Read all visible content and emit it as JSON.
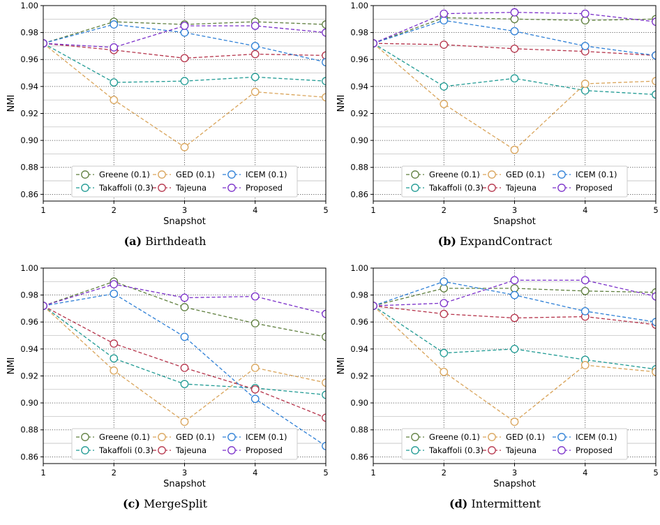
{
  "y_tick_labels": [
    "0.86",
    "0.88",
    "0.90",
    "0.92",
    "0.94",
    "0.96",
    "0.98",
    "1.00"
  ],
  "x_tick_labels": [
    "1",
    "2",
    "3",
    "4",
    "5"
  ],
  "legend_markers": "circle",
  "chart_data": [
    {
      "type": "line",
      "panel_label": "(a)",
      "caption": "Birthdeath",
      "xlabel": "Snapshot",
      "ylabel": "NMI",
      "x": [
        1,
        2,
        3,
        4,
        5
      ],
      "xlim": [
        1,
        5
      ],
      "ylim": [
        0.855,
        1.0
      ],
      "grid": true,
      "legend_placement": "bottom-center",
      "series": [
        {
          "name": "Greene (0.1)",
          "color": "#5f7f3f",
          "values": [
            0.972,
            0.988,
            0.986,
            0.988,
            0.986
          ]
        },
        {
          "name": "Takaffoli (0.3)",
          "color": "#1f9a93",
          "values": [
            0.972,
            0.943,
            0.944,
            0.947,
            0.944
          ]
        },
        {
          "name": "GED (0.1)",
          "color": "#d9a45a",
          "values": [
            0.972,
            0.93,
            0.895,
            0.936,
            0.932
          ]
        },
        {
          "name": "Tajeuna",
          "color": "#b5334a",
          "values": [
            0.972,
            0.967,
            0.961,
            0.964,
            0.963
          ]
        },
        {
          "name": "ICEM (0.1)",
          "color": "#2d7fd6",
          "values": [
            0.972,
            0.986,
            0.98,
            0.97,
            0.958
          ]
        },
        {
          "name": "Proposed",
          "color": "#7a2fc9",
          "values": [
            0.972,
            0.969,
            0.985,
            0.985,
            0.98
          ]
        }
      ]
    },
    {
      "type": "line",
      "panel_label": "(b)",
      "caption": "ExpandContract",
      "xlabel": "Snapshot",
      "ylabel": "NMI",
      "x": [
        1,
        2,
        3,
        4,
        5
      ],
      "xlim": [
        1,
        5
      ],
      "ylim": [
        0.855,
        1.0
      ],
      "grid": true,
      "legend_placement": "bottom-center",
      "series": [
        {
          "name": "Greene (0.1)",
          "color": "#5f7f3f",
          "values": [
            0.972,
            0.991,
            0.99,
            0.989,
            0.99
          ]
        },
        {
          "name": "Takaffoli (0.3)",
          "color": "#1f9a93",
          "values": [
            0.972,
            0.94,
            0.946,
            0.937,
            0.934
          ]
        },
        {
          "name": "GED (0.1)",
          "color": "#d9a45a",
          "values": [
            0.972,
            0.927,
            0.893,
            0.942,
            0.944
          ]
        },
        {
          "name": "Tajeuna",
          "color": "#b5334a",
          "values": [
            0.972,
            0.971,
            0.968,
            0.966,
            0.963
          ]
        },
        {
          "name": "ICEM (0.1)",
          "color": "#2d7fd6",
          "values": [
            0.972,
            0.989,
            0.981,
            0.97,
            0.963
          ]
        },
        {
          "name": "Proposed",
          "color": "#7a2fc9",
          "values": [
            0.972,
            0.994,
            0.995,
            0.994,
            0.988
          ]
        }
      ]
    },
    {
      "type": "line",
      "panel_label": "(c)",
      "caption": "MergeSplit",
      "xlabel": "Snapshot",
      "ylabel": "NMI",
      "x": [
        1,
        2,
        3,
        4,
        5
      ],
      "xlim": [
        1,
        5
      ],
      "ylim": [
        0.855,
        1.0
      ],
      "grid": true,
      "legend_placement": "bottom-center",
      "series": [
        {
          "name": "Greene (0.1)",
          "color": "#5f7f3f",
          "values": [
            0.972,
            0.99,
            0.971,
            0.959,
            0.949
          ]
        },
        {
          "name": "Takaffoli (0.3)",
          "color": "#1f9a93",
          "values": [
            0.972,
            0.933,
            0.914,
            0.911,
            0.906
          ]
        },
        {
          "name": "GED (0.1)",
          "color": "#d9a45a",
          "values": [
            0.972,
            0.924,
            0.886,
            0.926,
            0.915
          ]
        },
        {
          "name": "Tajeuna",
          "color": "#b5334a",
          "values": [
            0.972,
            0.944,
            0.926,
            0.91,
            0.889
          ]
        },
        {
          "name": "ICEM (0.1)",
          "color": "#2d7fd6",
          "values": [
            0.972,
            0.981,
            0.949,
            0.903,
            0.868
          ]
        },
        {
          "name": "Proposed",
          "color": "#7a2fc9",
          "values": [
            0.972,
            0.988,
            0.978,
            0.979,
            0.966
          ]
        }
      ]
    },
    {
      "type": "line",
      "panel_label": "(d)",
      "caption": "Intermittent",
      "xlabel": "Snapshot",
      "ylabel": "NMI",
      "x": [
        1,
        2,
        3,
        4,
        5
      ],
      "xlim": [
        1,
        5
      ],
      "ylim": [
        0.855,
        1.0
      ],
      "grid": true,
      "legend_placement": "bottom-center",
      "series": [
        {
          "name": "Greene (0.1)",
          "color": "#5f7f3f",
          "values": [
            0.972,
            0.985,
            0.985,
            0.983,
            0.982
          ]
        },
        {
          "name": "Takaffoli (0.3)",
          "color": "#1f9a93",
          "values": [
            0.972,
            0.937,
            0.94,
            0.932,
            0.925
          ]
        },
        {
          "name": "GED (0.1)",
          "color": "#d9a45a",
          "values": [
            0.972,
            0.923,
            0.886,
            0.928,
            0.923
          ]
        },
        {
          "name": "Tajeuna",
          "color": "#b5334a",
          "values": [
            0.972,
            0.966,
            0.963,
            0.964,
            0.958
          ]
        },
        {
          "name": "ICEM (0.1)",
          "color": "#2d7fd6",
          "values": [
            0.972,
            0.99,
            0.98,
            0.968,
            0.96
          ]
        },
        {
          "name": "Proposed",
          "color": "#7a2fc9",
          "values": [
            0.972,
            0.974,
            0.991,
            0.991,
            0.979
          ]
        }
      ]
    }
  ]
}
